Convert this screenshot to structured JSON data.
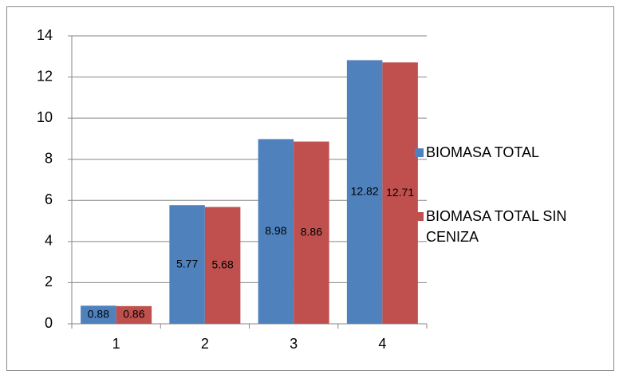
{
  "chart_data": {
    "type": "bar",
    "categories": [
      "1",
      "2",
      "3",
      "4"
    ],
    "series": [
      {
        "name": "BIOMASA TOTAL",
        "color": "#4f81bd",
        "values": [
          0.88,
          5.77,
          8.98,
          12.82
        ]
      },
      {
        "name": "BIOMASA TOTAL SIN CENIZA",
        "color": "#c0504d",
        "values": [
          0.86,
          5.68,
          8.86,
          12.71
        ]
      }
    ],
    "ylim": [
      0,
      14
    ],
    "yticks": [
      0,
      2,
      4,
      6,
      8,
      10,
      12,
      14
    ],
    "grid": true,
    "legend": "right"
  }
}
